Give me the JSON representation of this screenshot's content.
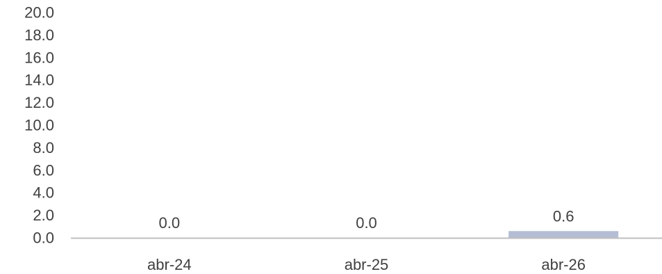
{
  "chart_data": {
    "type": "bar",
    "title": "",
    "xlabel": "",
    "ylabel": "",
    "categories": [
      "abr-24",
      "abr-25",
      "abr-26"
    ],
    "values": [
      0.0,
      0.0,
      0.6
    ],
    "data_labels": [
      "0.0",
      "0.0",
      "0.6"
    ],
    "ylim": [
      0,
      20
    ],
    "y_ticks": [
      "0.0",
      "2.0",
      "4.0",
      "6.0",
      "8.0",
      "10.0",
      "12.0",
      "14.0",
      "16.0",
      "18.0",
      "20.0"
    ],
    "grid": false,
    "legend": "none",
    "colors": {
      "bar": "#b4bdd3",
      "axis": "#bfbfbf",
      "text": "#404040"
    }
  }
}
